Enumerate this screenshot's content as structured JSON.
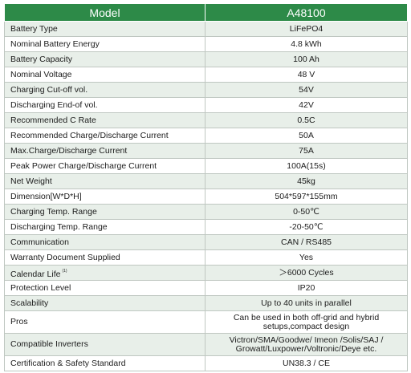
{
  "header": {
    "col1": "Model",
    "col2": "A48100"
  },
  "rows": [
    {
      "label": "Battery Type",
      "value": "LiFePO4"
    },
    {
      "label": "Nominal Battery Energy",
      "value": "4.8 kWh"
    },
    {
      "label": "Battery Capacity",
      "value": "100 Ah"
    },
    {
      "label": "Nominal Voltage",
      "value": "48 V"
    },
    {
      "label": "Charging Cut-off vol.",
      "value": "54V"
    },
    {
      "label": "Discharging End-of vol.",
      "value": "42V"
    },
    {
      "label": "Recommended C Rate",
      "value": "0.5C"
    },
    {
      "label": "Recommended Charge/Discharge Current",
      "value": "50A"
    },
    {
      "label": "Max.Charge/Discharge Current",
      "value": "75A"
    },
    {
      "label": "Peak Power Charge/Discharge Current",
      "value": "100A(15s)"
    },
    {
      "label": "Net Weight",
      "value": "45kg"
    },
    {
      "label": "Dimension[W*D*H]",
      "value": "504*597*155mm"
    },
    {
      "label": "Charging Temp. Range",
      "value": "0-50℃"
    },
    {
      "label": "Discharging Temp. Range",
      "value": "-20-50℃"
    },
    {
      "label": "Communication",
      "value": "CAN / RS485"
    },
    {
      "label": "Warranty Document Supplied",
      "value": "Yes"
    },
    {
      "label": "Calendar Life",
      "note": "(1)",
      "value": "＞6000 Cycles"
    },
    {
      "label": "Protection Level",
      "value": "IP20"
    },
    {
      "label": "Scalability",
      "value": "Up to 40 units in parallel"
    },
    {
      "label": "Pros",
      "value_line1": "Can be used in both off-grid and hybrid",
      "value_line2": "setups,compact design"
    },
    {
      "label": "Compatible Inverters",
      "value_line1": "Victron/SMA/Goodwe/ Imeon /Solis/SAJ /",
      "value_line2": "Growatt/Luxpower/Voltronic/Deye etc."
    },
    {
      "label": "Certification & Safety Standard",
      "value": "UN38.3 / CE"
    }
  ]
}
